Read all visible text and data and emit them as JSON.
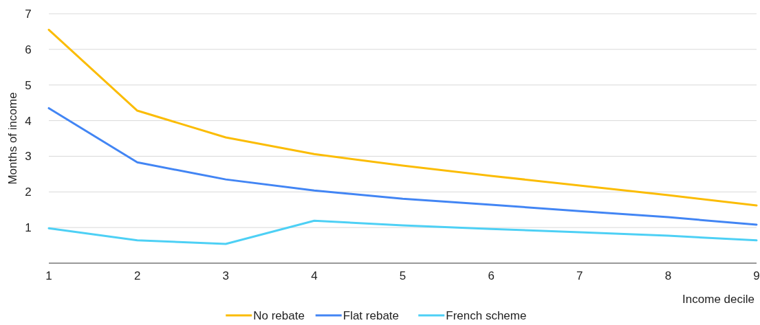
{
  "chart_data": {
    "type": "line",
    "xlabel": "Income decile",
    "ylabel": "Months of income",
    "x": [
      1,
      2,
      3,
      4,
      5,
      6,
      7,
      8,
      9
    ],
    "series": [
      {
        "name": "No rebate",
        "color": "#fbbc04",
        "values": [
          6.55,
          4.28,
          3.53,
          3.06,
          2.74,
          2.45,
          2.18,
          1.91,
          1.62
        ]
      },
      {
        "name": "Flat rebate",
        "color": "#4285f4",
        "values": [
          4.35,
          2.83,
          2.35,
          2.04,
          1.81,
          1.64,
          1.46,
          1.29,
          1.08
        ]
      },
      {
        "name": "French scheme",
        "color": "#4dd0f5",
        "values": [
          0.98,
          0.64,
          0.54,
          1.19,
          1.06,
          0.96,
          0.87,
          0.77,
          0.64
        ]
      }
    ],
    "xlim": [
      1,
      9
    ],
    "xticks": [
      1,
      2,
      3,
      4,
      5,
      6,
      7,
      8,
      9
    ],
    "ylim": [
      0,
      7
    ],
    "yticks": [
      1,
      2,
      3,
      4,
      5,
      6,
      7
    ],
    "grid": "y",
    "legend": "bottom",
    "marker": "none",
    "line_style": "solid"
  }
}
